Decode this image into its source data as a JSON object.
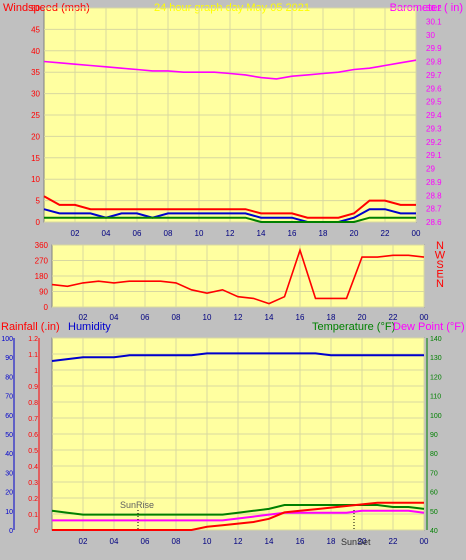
{
  "top": {
    "left_title": "Windspeed (mph)",
    "center_title": "24 hour graph day  May 05 2021",
    "right_title": "Barometer ( in)",
    "left_axis_ticks": [
      "0",
      "5",
      "10",
      "15",
      "20",
      "25",
      "30",
      "35",
      "40",
      "45",
      "50"
    ],
    "right_axis_ticks": [
      "28.6",
      "28.7",
      "28.8",
      "28.9",
      "29",
      "29.1",
      "29.2",
      "29.3",
      "29.4",
      "29.5",
      "29.6",
      "29.7",
      "29.8",
      "29.9",
      "30",
      "30.1",
      "30.2"
    ],
    "x_ticks": [
      "02",
      "04",
      "06",
      "08",
      "10",
      "12",
      "14",
      "16",
      "18",
      "20",
      "22",
      "00"
    ]
  },
  "direction": {
    "left_axis_ticks": [
      "0",
      "90",
      "180",
      "270",
      "360"
    ],
    "compass": [
      "N",
      "W",
      "S",
      "E",
      "N"
    ],
    "x_ticks": [
      "02",
      "04",
      "06",
      "08",
      "10",
      "12",
      "14",
      "16",
      "18",
      "20",
      "22",
      "00"
    ]
  },
  "bottom": {
    "rain_title": "Rainfall (.in)",
    "humidity_title": "Humidity",
    "temp_title": "Temperature (°F)",
    "dew_title": "Dew Point (°F)",
    "humidity_ticks": [
      "0",
      "10",
      "20",
      "30",
      "40",
      "50",
      "60",
      "70",
      "80",
      "90",
      "100"
    ],
    "rain_ticks": [
      "0",
      "0.1",
      "0.2",
      "0.3",
      "0.4",
      "0.5",
      "0.6",
      "0.7",
      "0.8",
      "0.9",
      "1",
      "1.1",
      "1.2"
    ],
    "temp_ticks": [
      "40",
      "50",
      "60",
      "70",
      "80",
      "90",
      "100",
      "110",
      "120",
      "130",
      "140"
    ],
    "x_ticks": [
      "02",
      "04",
      "06",
      "08",
      "10",
      "12",
      "14",
      "16",
      "18",
      "20",
      "22",
      "00"
    ],
    "sunrise_label": "SunRise",
    "sunset_label": "SunSet"
  },
  "colors": {
    "plot_bg": "#ffffa0",
    "frame_bg": "#c0c0c0",
    "wind": "#ff0000",
    "barometer": "#ff00ff",
    "humidity": "#0000cc",
    "temperature": "#008000",
    "dew": "#ff00ff",
    "rain": "#ff0000",
    "blue_axis": "#0000cc"
  },
  "chart_data": [
    {
      "type": "line",
      "title": "24 hour graph day  May 05 2021",
      "xlabel": "",
      "ylabel": "Windspeed (mph)",
      "ylabel_right": "Barometer ( in)",
      "ylim": [
        0,
        50
      ],
      "ylim_right": [
        28.6,
        30.2
      ],
      "x": [
        0,
        1,
        2,
        3,
        4,
        5,
        6,
        7,
        8,
        9,
        10,
        11,
        12,
        13,
        14,
        15,
        16,
        17,
        18,
        19,
        20,
        21,
        22,
        23,
        24
      ],
      "series": [
        {
          "name": "Windspeed (mph)",
          "axis": "left",
          "values": [
            6,
            4,
            4,
            3,
            3,
            3,
            3,
            3,
            3,
            3,
            3,
            3,
            3,
            3,
            2,
            2,
            2,
            1,
            1,
            1,
            2,
            5,
            5,
            4,
            4
          ]
        },
        {
          "name": "",
          "axis": "left",
          "values": [
            3,
            2,
            2,
            2,
            1,
            2,
            2,
            1,
            2,
            2,
            2,
            2,
            2,
            2,
            1,
            1,
            1,
            0,
            0,
            0,
            1,
            3,
            3,
            2,
            2
          ]
        },
        {
          "name": "",
          "axis": "left",
          "values": [
            1,
            1,
            1,
            1,
            1,
            1,
            1,
            1,
            1,
            1,
            1,
            1,
            1,
            1,
            0,
            0,
            0,
            0,
            0,
            0,
            0,
            1,
            1,
            1,
            1
          ]
        },
        {
          "name": "Barometer ( in)",
          "axis": "right",
          "values": [
            29.8,
            29.79,
            29.78,
            29.77,
            29.76,
            29.75,
            29.74,
            29.73,
            29.73,
            29.72,
            29.72,
            29.72,
            29.71,
            29.7,
            29.68,
            29.67,
            29.69,
            29.7,
            29.71,
            29.72,
            29.74,
            29.75,
            29.77,
            29.79,
            29.81
          ]
        }
      ]
    },
    {
      "type": "line",
      "title": "",
      "xlabel": "",
      "ylabel": "",
      "ylim": [
        0,
        360
      ],
      "x": [
        0,
        1,
        2,
        3,
        4,
        5,
        6,
        7,
        8,
        9,
        10,
        11,
        12,
        13,
        14,
        15,
        16,
        17,
        18,
        19,
        20,
        21,
        22,
        23,
        24
      ],
      "series": [
        {
          "name": "",
          "values": [
            130,
            120,
            140,
            150,
            140,
            150,
            150,
            150,
            140,
            100,
            80,
            100,
            60,
            50,
            20,
            60,
            330,
            50,
            50,
            50,
            290,
            290,
            300,
            300,
            290
          ]
        }
      ]
    },
    {
      "type": "line",
      "title": "",
      "xlabel": "",
      "ylabel": "Rainfall (.in)",
      "ylim": [
        0,
        1.2
      ],
      "ylim_humidity": [
        0,
        100
      ],
      "ylim_temperature": [
        40,
        140
      ],
      "x": [
        0,
        1,
        2,
        3,
        4,
        5,
        6,
        7,
        8,
        9,
        10,
        11,
        12,
        13,
        14,
        15,
        16,
        17,
        18,
        19,
        20,
        21,
        22,
        23,
        24
      ],
      "series": [
        {
          "name": "Humidity",
          "axis": "humidity",
          "values": [
            88,
            89,
            90,
            90,
            90,
            91,
            91,
            91,
            91,
            91,
            92,
            92,
            92,
            92,
            92,
            92,
            92,
            92,
            91,
            91,
            91,
            91,
            91,
            91,
            91
          ]
        },
        {
          "name": "Temperature (°F)",
          "axis": "temperature",
          "values": [
            50,
            49,
            48,
            48,
            48,
            48,
            48,
            48,
            48,
            48,
            48,
            48,
            49,
            50,
            51,
            53,
            53,
            53,
            53,
            53,
            53,
            53,
            52,
            52,
            51
          ]
        },
        {
          "name": "Dew Point (°F)",
          "axis": "temperature",
          "values": [
            45,
            45,
            45,
            45,
            45,
            45,
            45,
            45,
            45,
            45,
            45,
            45,
            46,
            47,
            48,
            49,
            49,
            49,
            49,
            49,
            50,
            50,
            50,
            50,
            49
          ]
        },
        {
          "name": "Rainfall (.in)",
          "axis": "rain",
          "values": [
            0,
            0,
            0,
            0,
            0,
            0,
            0,
            0,
            0,
            0,
            0.02,
            0.03,
            0.04,
            0.05,
            0.07,
            0.11,
            0.12,
            0.13,
            0.14,
            0.15,
            0.16,
            0.17,
            0.17,
            0.17,
            0.17
          ]
        }
      ]
    }
  ]
}
